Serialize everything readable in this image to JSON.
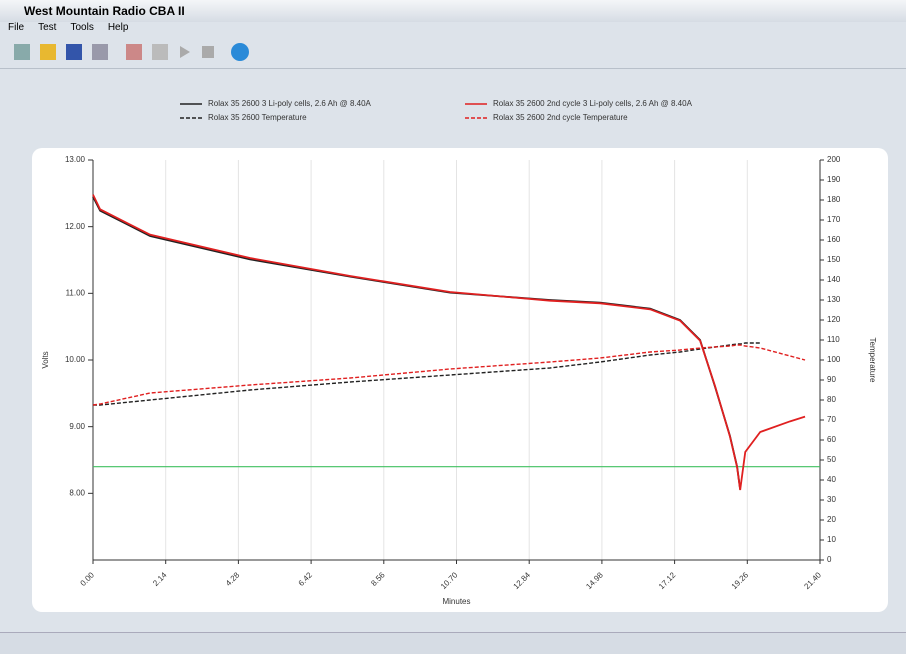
{
  "window": {
    "title": "West Mountain Radio CBA II",
    "menu": [
      "File",
      "Test",
      "Tools",
      "Help"
    ]
  },
  "chart_data": {
    "type": "line",
    "xlabel": "Minutes",
    "ylabel": "Volts",
    "y2label": "Temperature",
    "x": [
      0,
      0.21,
      1.68,
      4.62,
      7.57,
      10.51,
      13.45,
      14.93,
      16.4,
      17.28,
      17.87,
      18.31,
      18.75,
      18.96,
      19.05,
      19.2,
      19.64,
      20.52,
      20.96
    ],
    "series": [
      {
        "name": "Rolax 35 2600 3 Li-poly cells, 2.6 Ah @ 8.40A",
        "color": "#222222",
        "dash": false,
        "values": [
          12.45,
          12.24,
          11.86,
          11.51,
          11.25,
          11.01,
          10.9,
          10.86,
          10.77,
          10.6,
          10.3,
          9.6,
          8.86,
          8.4,
          8.06,
          null,
          null,
          null,
          null
        ]
      },
      {
        "name": "Rolax 35 2600 Temperature",
        "color": "#222222",
        "dash": true,
        "axis": "y2",
        "values": [
          77.5,
          77.5,
          80,
          85,
          89,
          92.5,
          96,
          99,
          102.5,
          104,
          105.5,
          106.5,
          107.5,
          108,
          108,
          108.5,
          108.5,
          null,
          null
        ]
      },
      {
        "name": "Rolax 35 2600 2nd cycle 3 Li-poly cells, 2.6 Ah @ 8.40A",
        "color": "#e02020",
        "dash": false,
        "values": [
          12.48,
          12.26,
          11.88,
          11.53,
          11.26,
          11.02,
          10.89,
          10.85,
          10.76,
          10.59,
          10.29,
          9.61,
          8.85,
          8.39,
          8.05,
          8.62,
          8.92,
          9.08,
          9.15
        ]
      },
      {
        "name": "Rolax 35 2600 2nd cycle Temperature",
        "color": "#e02020",
        "dash": true,
        "axis": "y2",
        "values": [
          77.5,
          78,
          83.5,
          87.5,
          91,
          95.5,
          99,
          101,
          104,
          105,
          106,
          106.5,
          107,
          107.5,
          107.5,
          107,
          106,
          102,
          100
        ]
      }
    ],
    "xlim": [
      0,
      21.4
    ],
    "xticks": [
      {
        "value": 0,
        "label": "0.00"
      },
      2.14,
      4.28,
      6.42,
      8.56,
      {
        "value": 10.7,
        "label": "10.70"
      },
      12.84,
      14.98,
      17.12,
      19.26,
      {
        "value": 21.4,
        "label": "21.40"
      }
    ],
    "ylim": [
      7,
      13
    ],
    "yticks": [
      {
        "value": 8,
        "label": "8.00"
      },
      {
        "value": 9,
        "label": "9.00"
      },
      {
        "value": 10,
        "label": "10.00"
      },
      {
        "value": 11,
        "label": "11.00"
      },
      {
        "value": 12,
        "label": "12.00"
      },
      {
        "value": 13,
        "label": "13.00"
      }
    ],
    "y2lim": [
      0,
      200
    ],
    "y2ticks": [
      0,
      10,
      20,
      30,
      40,
      50,
      60,
      70,
      80,
      90,
      100,
      110,
      120,
      130,
      140,
      150,
      160,
      170,
      180,
      190,
      200
    ],
    "grid": true,
    "hline": {
      "value": 8.4,
      "color": "#40c060"
    }
  }
}
